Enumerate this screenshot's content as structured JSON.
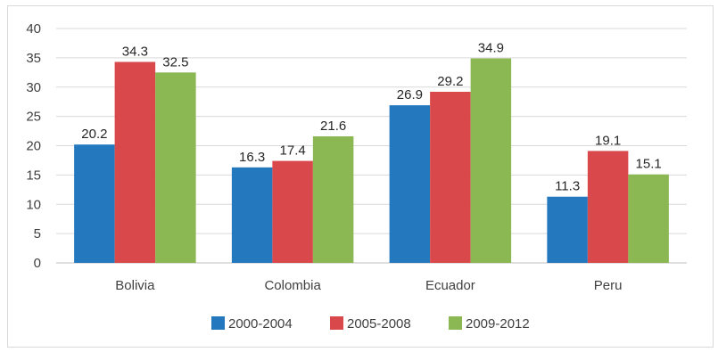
{
  "chart_data": {
    "type": "bar",
    "title": "",
    "xlabel": "",
    "ylabel": "",
    "categories": [
      "Bolivia",
      "Colombia",
      "Ecuador",
      "Peru"
    ],
    "series": [
      {
        "name": "2000-2004",
        "color": "#2479be",
        "values": [
          20.2,
          16.3,
          26.9,
          11.3
        ]
      },
      {
        "name": "2005-2008",
        "color": "#d9484b",
        "values": [
          34.3,
          17.4,
          29.2,
          19.1
        ]
      },
      {
        "name": "2009-2012",
        "color": "#8cb854",
        "values": [
          32.5,
          21.6,
          34.9,
          15.1
        ]
      }
    ],
    "ylim": [
      0,
      40
    ],
    "yticks": [
      0,
      5,
      10,
      15,
      20,
      25,
      30,
      35,
      40
    ],
    "grid": true,
    "legend": "bottom",
    "data_labels": true
  }
}
